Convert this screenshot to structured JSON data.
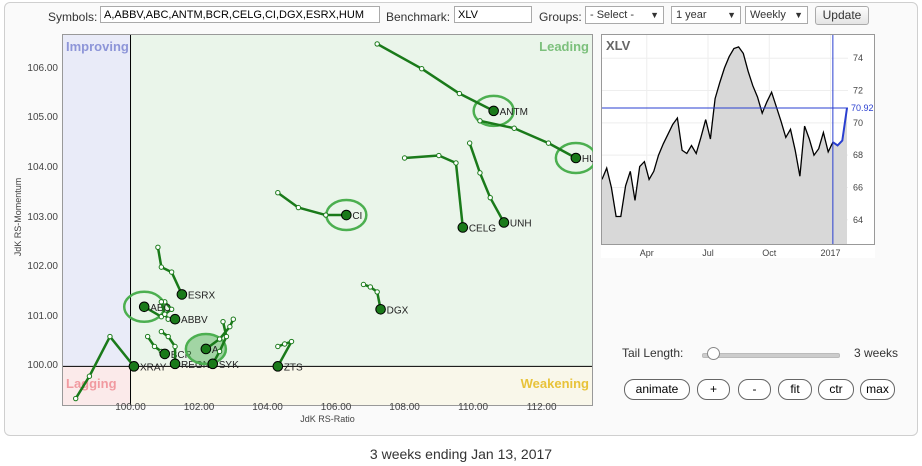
{
  "toolbar": {
    "symbols_label": "Symbols:",
    "symbols_value": "A,ABBV,ABC,ANTM,BCR,CELG,CI,DGX,ESRX,HUM",
    "benchmark_label": "Benchmark:",
    "benchmark_value": "XLV",
    "groups_label": "Groups:",
    "groups_value": "- Select -",
    "period_value": "1 year",
    "frequency_value": "Weekly",
    "update_label": "Update"
  },
  "rrg": {
    "ylabel": "JdK RS-Momentum",
    "xlabel": "JdK RS-Ratio",
    "quadrants": {
      "improving": "Improving",
      "leading": "Leading",
      "lagging": "Lagging",
      "weakening": "Weakening"
    },
    "xlim": [
      98.0,
      113.5
    ],
    "ylim": [
      99.2,
      106.7
    ],
    "center": [
      100,
      100
    ],
    "xticks": [
      100.0,
      102.0,
      104.0,
      106.0,
      108.0,
      110.0,
      112.0
    ],
    "yticks": [
      100.0,
      101.0,
      102.0,
      103.0,
      104.0,
      105.0,
      106.0
    ],
    "colors": {
      "improving": "#e9ebf8",
      "leading": "#eaf5ea",
      "lagging": "#fbeaea",
      "weakening": "#f9f7ea",
      "tail": "#1a7a1a",
      "highlight": "#4caf50"
    },
    "series": [
      {
        "symbol": "ANTM",
        "points": [
          [
            107.2,
            106.5
          ],
          [
            108.5,
            106.0
          ],
          [
            109.6,
            105.5
          ],
          [
            110.6,
            105.15
          ]
        ],
        "highlight": true
      },
      {
        "symbol": "HUM",
        "points": [
          [
            110.2,
            104.95
          ],
          [
            111.2,
            104.8
          ],
          [
            112.2,
            104.5
          ],
          [
            113.0,
            104.2
          ]
        ],
        "highlight": true
      },
      {
        "symbol": "CI",
        "points": [
          [
            104.3,
            103.5
          ],
          [
            104.9,
            103.2
          ],
          [
            105.7,
            103.05
          ],
          [
            106.3,
            103.05
          ]
        ],
        "highlight": true
      },
      {
        "symbol": "CELG",
        "points": [
          [
            108.0,
            104.2
          ],
          [
            109.0,
            104.25
          ],
          [
            109.5,
            104.1
          ],
          [
            109.7,
            102.8
          ]
        ],
        "highlight": false
      },
      {
        "symbol": "UNH",
        "points": [
          [
            109.9,
            104.5
          ],
          [
            110.2,
            103.9
          ],
          [
            110.5,
            103.4
          ],
          [
            110.9,
            102.9
          ]
        ],
        "highlight": false
      },
      {
        "symbol": "DGX",
        "points": [
          [
            106.8,
            101.65
          ],
          [
            107.0,
            101.6
          ],
          [
            107.2,
            101.5
          ],
          [
            107.3,
            101.15
          ]
        ],
        "highlight": false
      },
      {
        "symbol": "ESRX",
        "points": [
          [
            100.8,
            102.4
          ],
          [
            100.9,
            102.0
          ],
          [
            101.2,
            101.9
          ],
          [
            101.5,
            101.45
          ]
        ],
        "highlight": false
      },
      {
        "symbol": "ABC",
        "points": [
          [
            101.0,
            101.3
          ],
          [
            101.2,
            101.15
          ],
          [
            100.9,
            101.0
          ],
          [
            100.4,
            101.2
          ]
        ],
        "highlight": true
      },
      {
        "symbol": "ABBV",
        "points": [
          [
            100.9,
            101.3
          ],
          [
            101.0,
            101.05
          ],
          [
            101.1,
            100.95
          ],
          [
            101.3,
            100.95
          ]
        ],
        "highlight": false
      },
      {
        "symbol": "XRAY",
        "points": [
          [
            98.4,
            99.35
          ],
          [
            98.8,
            99.8
          ],
          [
            99.4,
            100.6
          ],
          [
            100.1,
            100.0
          ]
        ],
        "highlight": false
      },
      {
        "symbol": "BCR",
        "points": [
          [
            100.5,
            100.6
          ],
          [
            100.7,
            100.4
          ],
          [
            100.9,
            100.3
          ],
          [
            101.0,
            100.25
          ]
        ],
        "highlight": false
      },
      {
        "symbol": "REGN",
        "points": [
          [
            100.9,
            100.7
          ],
          [
            101.1,
            100.6
          ],
          [
            101.3,
            100.4
          ],
          [
            101.3,
            100.05
          ]
        ],
        "highlight": false
      },
      {
        "symbol": "A",
        "points": [
          [
            103.0,
            100.95
          ],
          [
            102.9,
            100.8
          ],
          [
            102.6,
            100.55
          ],
          [
            102.2,
            100.35
          ]
        ],
        "highlight": true
      },
      {
        "symbol": "SYK",
        "points": [
          [
            102.7,
            100.9
          ],
          [
            102.8,
            100.6
          ],
          [
            102.6,
            100.3
          ],
          [
            102.4,
            100.05
          ]
        ],
        "highlight": false
      },
      {
        "symbol": "ZTS",
        "points": [
          [
            104.3,
            100.4
          ],
          [
            104.5,
            100.45
          ],
          [
            104.7,
            100.5
          ],
          [
            104.3,
            100.0
          ]
        ],
        "highlight": false
      }
    ],
    "label_overrides": {
      "XRAY": "XRAY",
      "REGN": "REGN"
    }
  },
  "benchmark_chart": {
    "title": "XLV",
    "current_value": "70.92",
    "current": 70.92,
    "ylim": [
      62.5,
      75.5
    ],
    "yticks": [
      64,
      66,
      68,
      70,
      72,
      74
    ],
    "xticks": [
      "Apr",
      "Jul",
      "Oct",
      "2017"
    ],
    "xtick_positions": [
      9.5,
      22.5,
      35.5,
      48.5
    ],
    "values": [
      66.5,
      67.2,
      66.0,
      64.2,
      64.2,
      66.1,
      67.0,
      65.2,
      67.3,
      67.6,
      66.5,
      67.0,
      68.0,
      68.7,
      69.3,
      69.9,
      70.3,
      68.3,
      68.1,
      68.6,
      68.1,
      69.1,
      70.2,
      69.0,
      71.5,
      72.5,
      73.4,
      74.1,
      74.6,
      74.7,
      74.3,
      73.2,
      72.3,
      71.6,
      70.6,
      71.3,
      71.9,
      71.0,
      70.1,
      69.1,
      69.6,
      68.3,
      66.7,
      69.8,
      69.0,
      68.0,
      68.4,
      69.4,
      68.2,
      68.8,
      68.6,
      68.9,
      70.92
    ],
    "highlight_from": 49,
    "colors": {
      "line": "#000000",
      "highlight_line": "#2a3fd0",
      "fill": "#d8d8d8",
      "ref_line": "#2a3fd0"
    }
  },
  "tail": {
    "label": "Tail Length:",
    "value_text": "3 weeks",
    "value": 3,
    "max": 52
  },
  "buttons": {
    "animate": "animate",
    "plus": "+",
    "minus": "-",
    "fit": "fit",
    "ctr": "ctr",
    "max": "max"
  },
  "footer": "3 weeks ending Jan 13, 2017"
}
